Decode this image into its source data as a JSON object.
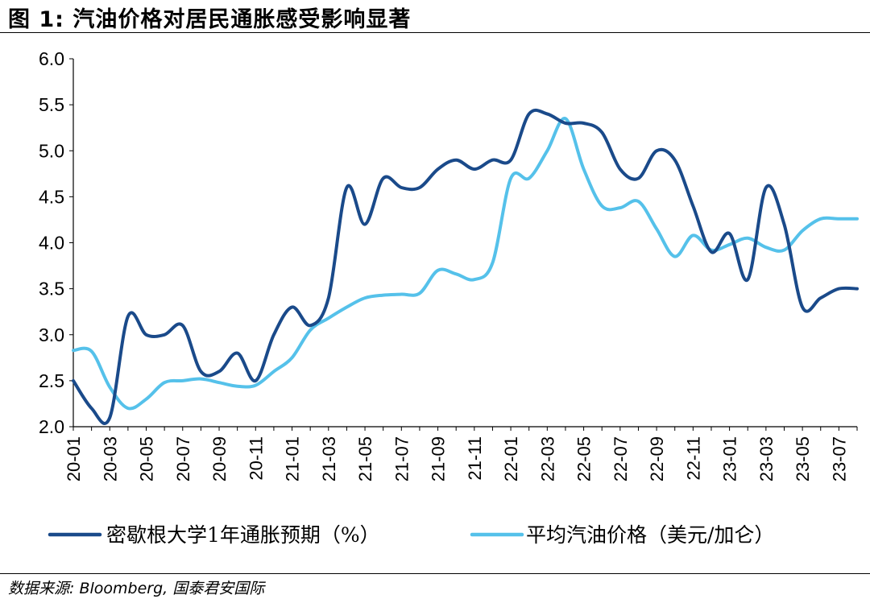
{
  "figure": {
    "title": "图 1:  汽油价格对居民通胀感受影响显著",
    "source": "数据来源: Bloomberg, 国泰君安国际"
  },
  "chart_data": {
    "type": "line",
    "title": "",
    "xlabel": "",
    "ylabel": "",
    "ylim": [
      2.0,
      6.0
    ],
    "yticks": [
      "2.0",
      "2.5",
      "3.0",
      "3.5",
      "4.0",
      "4.5",
      "5.0",
      "5.5",
      "6.0"
    ],
    "x": [
      "20-01",
      "20-02",
      "20-03",
      "20-04",
      "20-05",
      "20-06",
      "20-07",
      "20-08",
      "20-09",
      "20-10",
      "20-11",
      "20-12",
      "21-01",
      "21-02",
      "21-03",
      "21-04",
      "21-05",
      "21-06",
      "21-07",
      "21-08",
      "21-09",
      "21-10",
      "21-11",
      "21-12",
      "22-01",
      "22-02",
      "22-03",
      "22-04",
      "22-05",
      "22-06",
      "22-07",
      "22-08",
      "22-09",
      "22-10",
      "22-11",
      "22-12",
      "23-01",
      "23-02",
      "23-03",
      "23-04",
      "23-05",
      "23-06",
      "23-07",
      "23-08"
    ],
    "xtick_labels": [
      "20-01",
      "20-03",
      "20-05",
      "20-07",
      "20-09",
      "20-11",
      "21-01",
      "21-03",
      "21-05",
      "21-07",
      "21-09",
      "21-11",
      "22-01",
      "22-03",
      "22-05",
      "22-07",
      "22-09",
      "22-11",
      "23-01",
      "23-03",
      "23-05",
      "23-07"
    ],
    "grid": false,
    "legend_position": "bottom",
    "series": [
      {
        "name": "密歇根大学1年通胀预期（%）",
        "color": "#1a4a8a",
        "values": [
          2.5,
          2.2,
          2.1,
          3.2,
          3.0,
          3.0,
          3.1,
          2.6,
          2.6,
          2.8,
          2.5,
          3.0,
          3.3,
          3.1,
          3.4,
          4.6,
          4.2,
          4.7,
          4.6,
          4.6,
          4.8,
          4.9,
          4.8,
          4.9,
          4.9,
          5.4,
          5.4,
          5.3,
          5.3,
          5.2,
          4.8,
          4.7,
          5.0,
          4.9,
          4.4,
          3.9,
          4.1,
          3.6,
          4.6,
          4.2,
          3.3,
          3.4,
          3.5,
          3.5
        ]
      },
      {
        "name": "平均汽油价格（美元/加仑）",
        "color": "#55c1ea",
        "values": [
          2.83,
          2.82,
          2.43,
          2.2,
          2.3,
          2.48,
          2.5,
          2.52,
          2.48,
          2.44,
          2.45,
          2.6,
          2.75,
          3.05,
          3.18,
          3.3,
          3.4,
          3.43,
          3.44,
          3.45,
          3.7,
          3.66,
          3.6,
          3.78,
          4.7,
          4.7,
          5.0,
          5.35,
          4.8,
          4.4,
          4.38,
          4.45,
          4.15,
          3.85,
          4.08,
          3.92,
          3.98,
          4.05,
          3.95,
          3.92,
          4.13,
          4.26,
          4.26,
          4.26
        ]
      }
    ]
  }
}
